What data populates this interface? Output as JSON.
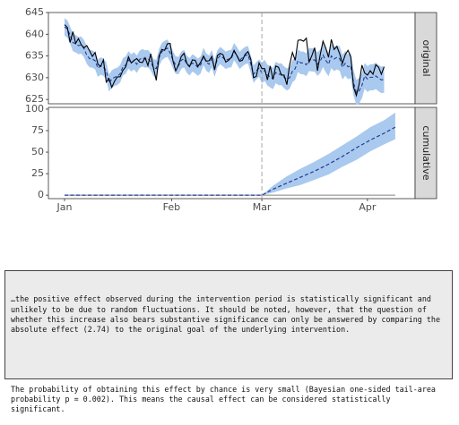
{
  "chart_data": [
    {
      "type": "line",
      "panel": "original",
      "strip_label": "original",
      "ylim": [
        624,
        645
      ],
      "yticks": [
        "625",
        "630",
        "635",
        "640",
        "645"
      ],
      "xticks": [
        "Jan",
        "Feb",
        "Mar",
        "Apr"
      ],
      "x_start": "2014-01-01",
      "intervention_day": 71,
      "series": [
        {
          "style": "solid-black",
          "values": [
            642.2,
            641.6,
            638.1,
            640.6,
            637.9,
            639.0,
            637.6,
            636.9,
            637.4,
            636.2,
            634.9,
            635.8,
            633.1,
            632.6,
            634.1,
            629.0,
            629.8,
            627.8,
            629.2,
            630.2,
            630.2,
            631.7,
            632.5,
            634.8,
            633.4,
            634.0,
            634.4,
            633.6,
            633.5,
            634.6,
            632.8,
            635.5,
            632.2,
            629.4,
            635.0,
            636.5,
            636.3,
            637.8,
            637.9,
            633.9,
            631.6,
            632.9,
            634.9,
            635.6,
            633.3,
            632.6,
            634.1,
            634.0,
            632.6,
            633.6,
            635.0,
            633.8,
            633.9,
            634.9,
            631.8,
            635.1,
            635.6,
            635.3,
            633.6,
            634.0,
            634.7,
            636.3,
            635.1,
            633.8,
            634.0,
            635.4,
            636.0,
            634.3,
            630.0,
            630.3,
            633.4,
            632.1,
            632.1,
            629.5,
            632.7,
            629.6,
            632.7,
            632.4,
            630.6,
            630.6,
            628.4,
            633.0,
            635.8,
            634.0,
            638.6,
            638.7,
            638.4,
            639.1,
            633.6,
            635.1,
            636.9,
            631.6,
            635.3,
            638.4,
            636.8,
            634.7,
            638.8,
            636.5,
            637.2,
            635.5,
            633.3,
            635.3,
            636.3,
            634.8,
            627.8,
            625.9,
            628.5,
            632.9,
            631.1,
            630.6,
            631.6,
            630.8,
            633.0,
            632.4,
            630.8,
            632.5
          ]
        },
        {
          "style": "dashed-blue",
          "values": [
            641.7,
            641.2,
            639.8,
            638.1,
            637.8,
            637.4,
            637.5,
            636.7,
            635.2,
            634.4,
            634.3,
            633.9,
            632.2,
            632.7,
            632.4,
            631.6,
            628.8,
            629.7,
            630.1,
            630.3,
            630.9,
            632.5,
            632.9,
            634.1,
            633.4,
            633.9,
            633.1,
            634.2,
            634.6,
            634.3,
            634.4,
            633.7,
            632.3,
            632.1,
            634.6,
            636.0,
            636.5,
            636.8,
            635.7,
            634.1,
            632.9,
            632.8,
            634.0,
            634.4,
            633.1,
            632.5,
            633.4,
            633.0,
            632.4,
            633.0,
            634.9,
            633.6,
            633.1,
            634.4,
            632.2,
            634.3,
            635.1,
            634.6,
            634.0,
            634.3,
            634.4,
            636.0,
            635.1,
            634.0,
            634.6,
            635.1,
            635.3,
            633.2,
            630.8,
            631.6,
            632.2,
            631.1,
            631.7,
            630.6,
            630.2,
            629.8,
            631.2,
            630.8,
            630.8,
            630.1,
            629.6,
            630.0,
            631.5,
            632.1,
            633.9,
            633.4,
            633.4,
            633.0,
            634.2,
            634.1,
            634.1,
            633.1,
            633.8,
            635.2,
            634.0,
            633.1,
            635.0,
            634.3,
            634.7,
            634.4,
            632.4,
            633.3,
            632.5,
            632.8,
            628.8,
            626.6,
            627.0,
            628.2,
            630.4,
            629.7,
            630.1,
            630.1,
            630.4,
            629.9,
            629.5,
            629.6
          ]
        }
      ]
    },
    {
      "type": "area",
      "panel": "cumulative",
      "strip_label": "cumulative",
      "ylim": [
        -4,
        102
      ],
      "yticks": [
        "0",
        "25",
        "50",
        "75",
        "100"
      ],
      "xticks": [
        "Jan",
        "Feb",
        "Mar",
        "Apr"
      ],
      "intervention_day": 71,
      "series": [
        {
          "style": "dashed-blue",
          "description": "cumulative effect",
          "points": [
            [
              0,
              0
            ],
            [
              71,
              0
            ],
            [
              75,
              7
            ],
            [
              80,
              14
            ],
            [
              85,
              21
            ],
            [
              90,
              28
            ],
            [
              95,
              36
            ],
            [
              100,
              45
            ],
            [
              105,
              55
            ],
            [
              110,
              64
            ],
            [
              115,
              72
            ],
            [
              119,
              79
            ]
          ]
        }
      ],
      "band_points": [
        [
          71,
          0,
          0
        ],
        [
          75,
          3,
          11
        ],
        [
          80,
          8,
          22
        ],
        [
          85,
          12,
          31
        ],
        [
          90,
          18,
          39
        ],
        [
          95,
          24,
          48
        ],
        [
          100,
          33,
          58
        ],
        [
          105,
          41,
          68
        ],
        [
          110,
          51,
          79
        ],
        [
          115,
          59,
          87
        ],
        [
          119,
          65,
          96
        ]
      ]
    }
  ],
  "colors": {
    "panel_bg": "#ffffff",
    "strip_bg": "#d9d9d9",
    "band": "#aac9ee",
    "series_blue": "#1f3a93",
    "series_black": "#000000",
    "vline": "#a6a6a6",
    "zero_line": "#808080"
  },
  "report": {
    "paragraph1": "…the positive effect observed during the intervention period is statistically significant and unlikely to be due to random fluctuations. It should be noted, however, that the question of whether this increase also bears substantive significance can only be answered by comparing the absolute effect (2.74) to the original goal of the underlying intervention.",
    "paragraph2": "The probability of obtaining this effect by chance is very small (Bayesian one-sided tail-area probability p = 0.002). This means the causal effect can be considered statistically significant."
  }
}
